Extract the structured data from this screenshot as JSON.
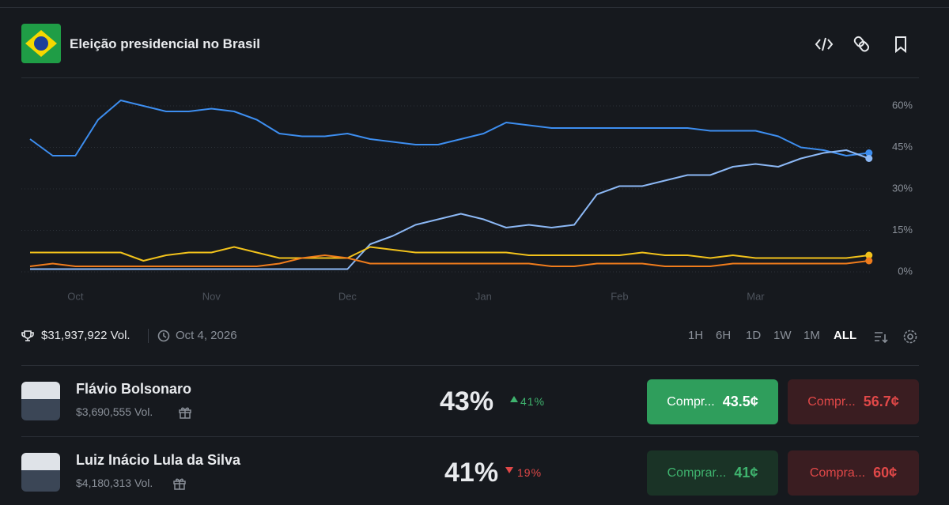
{
  "header": {
    "title": "Eleição presidencial no Brasil"
  },
  "chart_data": {
    "type": "line",
    "categories": [
      null,
      null,
      "Oct",
      null,
      null,
      null,
      null,
      null,
      "Nov",
      null,
      null,
      null,
      null,
      null,
      "Dec",
      null,
      null,
      null,
      null,
      null,
      "Jan",
      null,
      null,
      null,
      null,
      null,
      "Feb",
      null,
      null,
      null,
      null,
      null,
      "Mar",
      null,
      null,
      null,
      null,
      null
    ],
    "series": [
      {
        "color": "#3d8ef0",
        "values": [
          48,
          42,
          42,
          55,
          62,
          60,
          58,
          58,
          59,
          58,
          55,
          50,
          49,
          49,
          50,
          48,
          47,
          46,
          46,
          48,
          50,
          54,
          53,
          52,
          52,
          52,
          52,
          52,
          52,
          52,
          51,
          51,
          51,
          49,
          45,
          44,
          42,
          43
        ]
      },
      {
        "color": "#8cb8f5",
        "values": [
          1,
          1,
          1,
          1,
          1,
          1,
          1,
          1,
          1,
          1,
          1,
          1,
          1,
          1,
          1,
          10,
          13,
          17,
          19,
          21,
          19,
          16,
          17,
          16,
          17,
          28,
          31,
          31,
          33,
          35,
          35,
          38,
          39,
          38,
          41,
          43,
          44,
          41
        ]
      },
      {
        "color": "#f2c21b",
        "values": [
          7,
          7,
          7,
          7,
          7,
          4,
          6,
          7,
          7,
          9,
          7,
          5,
          5,
          5,
          5,
          9,
          8,
          7,
          7,
          7,
          7,
          7,
          6,
          6,
          6,
          6,
          6,
          7,
          6,
          6,
          5,
          6,
          5,
          5,
          5,
          5,
          5,
          6
        ]
      },
      {
        "color": "#f07c1c",
        "values": [
          2,
          3,
          2,
          2,
          2,
          2,
          2,
          2,
          2,
          2,
          2,
          3,
          5,
          6,
          5,
          3,
          3,
          3,
          3,
          3,
          3,
          3,
          3,
          2,
          2,
          3,
          3,
          3,
          2,
          2,
          2,
          3,
          3,
          3,
          3,
          3,
          3,
          4
        ]
      }
    ],
    "ylim": [
      -4,
      66
    ],
    "yticks": [
      {
        "value": 0,
        "label": "0%"
      },
      {
        "value": 15,
        "label": "15%"
      },
      {
        "value": 30,
        "label": "30%"
      },
      {
        "value": 45,
        "label": "45%"
      },
      {
        "value": 60,
        "label": "60%"
      }
    ],
    "grid": true
  },
  "stats": {
    "volume": "$31,937,922 Vol.",
    "end_date": "Oct 4, 2026"
  },
  "time_ranges": [
    "1H",
    "6H",
    "1D",
    "1W",
    "1M",
    "ALL"
  ],
  "selected_range": "ALL",
  "outcomes": [
    {
      "name": "Flávio Bolsonaro",
      "volume": "$3,690,555 Vol.",
      "probability": "43%",
      "change": "41%",
      "direction": "up",
      "buy_yes": {
        "label": "Compr...",
        "price": "43.5¢"
      },
      "buy_no": {
        "label": "Compr...",
        "price": "56.7¢"
      }
    },
    {
      "name": "Luiz Inácio Lula da Silva",
      "volume": "$4,180,313 Vol.",
      "probability": "41%",
      "change": "19%",
      "direction": "down",
      "buy_yes": {
        "label": "Comprar...",
        "price": "41¢"
      },
      "buy_no": {
        "label": "Compra...",
        "price": "60¢"
      }
    }
  ]
}
